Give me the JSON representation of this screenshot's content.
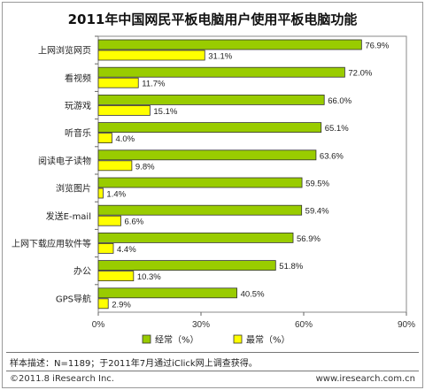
{
  "chart_data": {
    "type": "bar",
    "orientation": "horizontal",
    "title": "2011年中国网民平板电脑用户使用平板电脑功能",
    "categories": [
      "上网浏览网页",
      "看视频",
      "玩游戏",
      "听音乐",
      "阅读电子读物",
      "浏览图片",
      "发送E-mail",
      "上网下载应用软件等",
      "办公",
      "GPS导航"
    ],
    "series": [
      {
        "name": "经常（%）",
        "color": "#99cc00",
        "values": [
          76.9,
          72.0,
          66.0,
          65.1,
          63.6,
          59.5,
          59.4,
          56.9,
          51.8,
          40.5
        ]
      },
      {
        "name": "最常（%）",
        "color": "#ffff00",
        "values": [
          31.1,
          11.7,
          15.1,
          4.0,
          9.8,
          1.4,
          6.6,
          4.4,
          10.3,
          2.9
        ]
      }
    ],
    "value_labels": [
      [
        "76.9%",
        "72.0%",
        "66.0%",
        "65.1%",
        "63.6%",
        "59.5%",
        "59.4%",
        "56.9%",
        "51.8%",
        "40.5%"
      ],
      [
        "31.1%",
        "11.7%",
        "15.1%",
        "4.0%",
        "9.8%",
        "1.4%",
        "6.6%",
        "4.4%",
        "10.3%",
        "2.9%"
      ]
    ],
    "xlim": [
      0,
      90
    ],
    "xticks": [
      0,
      30,
      60,
      90
    ],
    "xtick_labels": [
      "0%",
      "30%",
      "60%",
      "90%"
    ],
    "grid": false,
    "legend_position": "bottom"
  },
  "note": "样本描述：N=1189；于2011年7月通过iClick网上调查获得。",
  "copyright": "©2011.8 iResearch Inc.",
  "website": "www.iresearch.com.cn"
}
